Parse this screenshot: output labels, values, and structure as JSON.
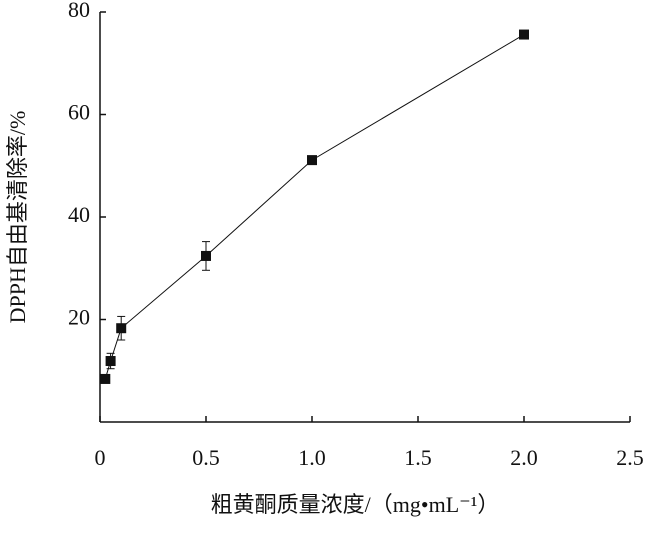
{
  "chart_data": {
    "type": "line",
    "x_label": "粗黄酮质量浓度/（mg•mL⁻¹）",
    "y_label": "DPPH自由基清除率/%",
    "x": [
      0.025,
      0.05,
      0.1,
      0.5,
      1.0,
      2.0
    ],
    "series": [
      {
        "color": "#111111",
        "values": [
          8.4,
          11.9,
          18.3,
          32.4,
          51.1,
          75.6
        ],
        "errors": [
          0.5,
          1.5,
          2.3,
          2.8,
          0.5,
          0.4
        ]
      }
    ],
    "xlim": [
      0,
      2.5
    ],
    "xticks": [
      0,
      0.5,
      {
        "value": 1,
        "label": "1.0"
      },
      1.5,
      {
        "value": 2,
        "label": "2.0"
      },
      2.5
    ],
    "ylim": [
      0,
      80
    ],
    "yticks": [
      20,
      40,
      60,
      80
    ]
  }
}
